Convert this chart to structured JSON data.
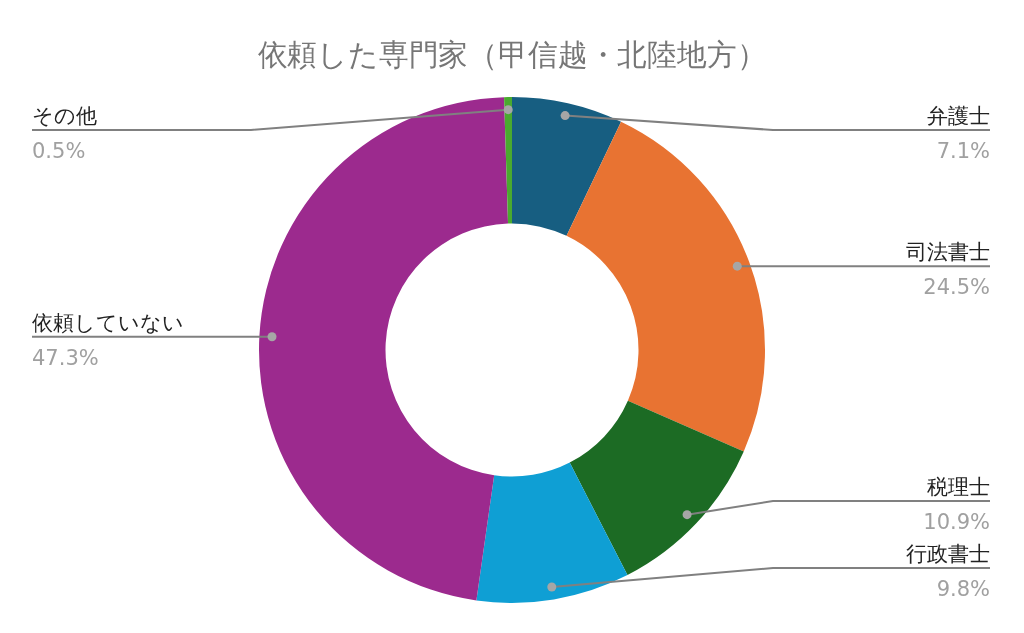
{
  "chart_data": {
    "type": "donut",
    "title": "依頼した専門家（甲信越・北陸地方）",
    "categories": [
      "弁護士",
      "司法書士",
      "税理士",
      "行政書士",
      "依頼していない",
      "その他"
    ],
    "values": [
      7.1,
      24.5,
      10.9,
      9.8,
      47.3,
      0.5
    ],
    "colors": [
      "#175e81",
      "#e87332",
      "#1c6b24",
      "#0f9fd4",
      "#9c2a8e",
      "#4aaa2f"
    ],
    "value_labels": [
      "7.1%",
      "24.5%",
      "10.9%",
      "9.8%",
      "47.3%",
      "0.5%"
    ]
  }
}
